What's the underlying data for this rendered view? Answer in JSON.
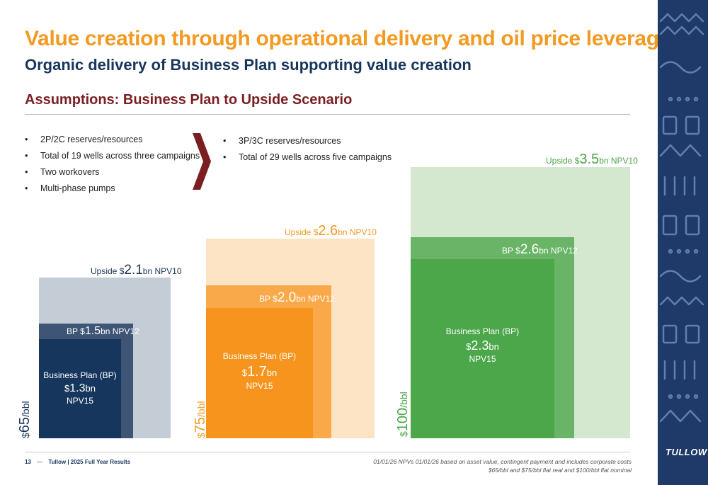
{
  "header": {
    "title": "Value creation through operational delivery and oil price leverage",
    "subtitle": "Organic delivery of Business Plan supporting value creation",
    "section": "Assumptions: Business Plan to Upside Scenario"
  },
  "assumptions": {
    "business_plan": [
      "2P/2C reserves/resources",
      "Total of 19 wells across three campaigns",
      "Two workovers",
      "Multi-phase pumps"
    ],
    "upside": [
      "3P/3C reserves/resources",
      "Total of 29 wells across five campaigns"
    ]
  },
  "scenarios": [
    {
      "price_value": "65",
      "price_unit": "/bbl",
      "upside": {
        "prefix": "Upside $",
        "value": "2.1",
        "suffix": "bn NPV10"
      },
      "bp12": {
        "prefix": "BP $",
        "value": "1.5",
        "suffix": "bn NPV12"
      },
      "bp15": {
        "label": "Business Plan (BP)",
        "prefix": "$",
        "value": "1.3",
        "suffix": "bn",
        "metric": "NPV15"
      },
      "colors": {
        "outer": "#c4ccd6",
        "mid": "#3e5576",
        "inner": "#17365d",
        "label": "#17365d",
        "price": "#17365d"
      }
    },
    {
      "price_value": "75",
      "price_unit": "/bbl",
      "upside": {
        "prefix": "Upside $",
        "value": "2.6",
        "suffix": "bn NPV10"
      },
      "bp12": {
        "prefix": "BP $",
        "value": "2.0",
        "suffix": "bn NPV12"
      },
      "bp15": {
        "label": "Business Plan (BP)",
        "prefix": "$",
        "value": "1.7",
        "suffix": "bn",
        "metric": "NPV15"
      },
      "colors": {
        "outer": "#fde4c5",
        "mid": "#faa94a",
        "inner": "#f7941d",
        "label": "#f39a21",
        "price": "#f39a21"
      }
    },
    {
      "price_value": "100",
      "price_unit": "/bbl",
      "upside": {
        "prefix": "Upside $",
        "value": "3.5",
        "suffix": "bn NPV10"
      },
      "bp12": {
        "prefix": "BP $",
        "value": "2.6",
        "suffix": "bn NPV12"
      },
      "bp15": {
        "label": "Business Plan (BP)",
        "prefix": "$",
        "value": "2.3",
        "suffix": "bn",
        "metric": "NPV15"
      },
      "colors": {
        "outer": "#d4e8cf",
        "mid": "#69b466",
        "inner": "#4ca64a",
        "label": "#4ca64a",
        "price": "#4ca64a"
      }
    }
  ],
  "footer": {
    "page": "13",
    "dash": "—",
    "title": "Tullow | 2025 Full Year Results",
    "note_line1": "01/01/26 NPVs 01/01/26 based on asset value, contingent payment and includes corporate costs",
    "note_line2": "$65/bbl and $75/bbl flat real and $100/bbl flat nominal",
    "logo": "TULLOW"
  }
}
